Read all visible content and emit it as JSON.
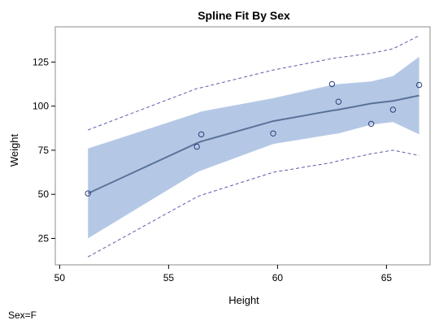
{
  "chart_data": {
    "type": "line",
    "title": "Spline Fit By Sex",
    "xlabel": "Height",
    "ylabel": "Weight",
    "xlim": [
      49.8,
      67.0
    ],
    "ylim": [
      10,
      145
    ],
    "x_ticks": [
      50,
      55,
      60,
      65
    ],
    "y_ticks": [
      25,
      50,
      75,
      100,
      125
    ],
    "grid": false,
    "legend": "none",
    "observations": {
      "x": [
        51.3,
        56.3,
        56.5,
        59.8,
        62.5,
        62.8,
        64.3,
        65.3,
        66.5
      ],
      "y": [
        50.5,
        77.0,
        84.0,
        84.5,
        112.5,
        102.5,
        90.0,
        98.0,
        112.0
      ]
    },
    "fit": {
      "x": [
        51.3,
        56.3,
        56.5,
        59.8,
        62.5,
        62.8,
        64.3,
        65.3,
        66.5
      ],
      "y": [
        50.5,
        79.0,
        80.0,
        91.5,
        97.5,
        98.0,
        101.5,
        103.0,
        106.0
      ]
    },
    "confidence_band": {
      "x": [
        51.3,
        56.3,
        56.5,
        59.8,
        62.5,
        62.8,
        64.3,
        65.3,
        66.5
      ],
      "lower": [
        25.0,
        62.5,
        63.5,
        78.5,
        84.0,
        84.5,
        89.5,
        91.0,
        84.0
      ],
      "upper": [
        76.0,
        96.0,
        97.0,
        104.5,
        112.0,
        112.5,
        114.0,
        117.0,
        128.0
      ]
    },
    "prediction_limits": {
      "x": [
        51.3,
        56.3,
        56.5,
        59.8,
        62.5,
        62.8,
        64.3,
        65.3,
        66.5
      ],
      "lower": [
        14.5,
        48.5,
        49.5,
        62.5,
        68.0,
        69.0,
        73.0,
        75.0,
        72.0
      ],
      "upper": [
        86.5,
        110.0,
        110.5,
        120.5,
        127.0,
        127.5,
        130.0,
        132.5,
        140.0
      ]
    },
    "colors": {
      "band": "#b4c8e6",
      "fit_line": "#5b7299",
      "prediction_line": "#5a5ea8",
      "marker": "#2e3f7a",
      "frame": "#8c8c8c"
    }
  },
  "footnote": "Sex=F"
}
